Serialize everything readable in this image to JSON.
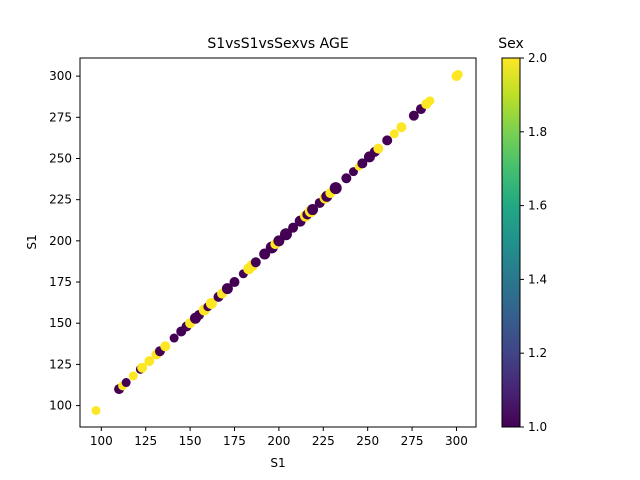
{
  "chart_data": {
    "type": "scatter",
    "title": "S1vsS1vsSexvs AGE",
    "xlabel": "S1",
    "ylabel": "S1",
    "xlim": [
      88,
      311
    ],
    "ylim": [
      87,
      311
    ],
    "xticks": [
      100,
      125,
      150,
      175,
      200,
      225,
      250,
      275,
      300
    ],
    "yticks": [
      100,
      125,
      150,
      175,
      200,
      225,
      250,
      275,
      300
    ],
    "grid": false,
    "colorbar": {
      "label": "Sex",
      "range": [
        1.0,
        2.0
      ],
      "ticks": [
        "1.0",
        "1.2",
        "1.4",
        "1.6",
        "1.8",
        "2.0"
      ],
      "colormap": "viridis"
    },
    "series": [
      {
        "color_value": 1,
        "color": "#440154",
        "x": [
          110,
          114,
          122,
          133,
          141,
          145,
          148,
          153,
          155,
          160,
          166,
          171,
          175,
          180,
          187,
          192,
          196,
          200,
          204,
          208,
          212,
          216,
          219,
          223,
          227,
          232,
          238,
          242,
          247,
          251,
          254,
          261,
          276,
          280
        ],
        "y": [
          110,
          114,
          122,
          133,
          141,
          145,
          148,
          153,
          155,
          160,
          166,
          171,
          175,
          180,
          187,
          192,
          196,
          200,
          204,
          208,
          212,
          216,
          219,
          223,
          227,
          232,
          238,
          242,
          247,
          251,
          254,
          261,
          276,
          280
        ],
        "size": [
          8,
          7,
          7,
          8,
          7,
          8,
          8,
          9,
          8,
          7,
          8,
          9,
          8,
          7,
          8,
          9,
          10,
          9,
          10,
          8,
          9,
          8,
          9,
          8,
          9,
          10,
          8,
          7,
          8,
          9,
          8,
          8,
          8,
          8
        ]
      },
      {
        "color_value": 2,
        "color": "#fde725",
        "x": [
          97,
          112,
          118,
          123,
          127,
          131,
          136,
          150,
          158,
          162,
          168,
          183,
          185,
          198,
          215,
          218,
          226,
          229,
          245,
          256,
          265,
          269,
          283,
          285,
          300,
          301
        ],
        "y": [
          97,
          112,
          118,
          123,
          127,
          131,
          136,
          150,
          158,
          162,
          168,
          183,
          185,
          198,
          215,
          218,
          226,
          229,
          245,
          256,
          265,
          269,
          283,
          285,
          300,
          301
        ],
        "size": [
          7,
          7,
          7,
          8,
          8,
          8,
          8,
          8,
          9,
          9,
          8,
          9,
          9,
          8,
          9,
          10,
          9,
          8,
          6,
          8,
          7,
          8,
          8,
          7,
          8,
          7
        ]
      }
    ]
  }
}
